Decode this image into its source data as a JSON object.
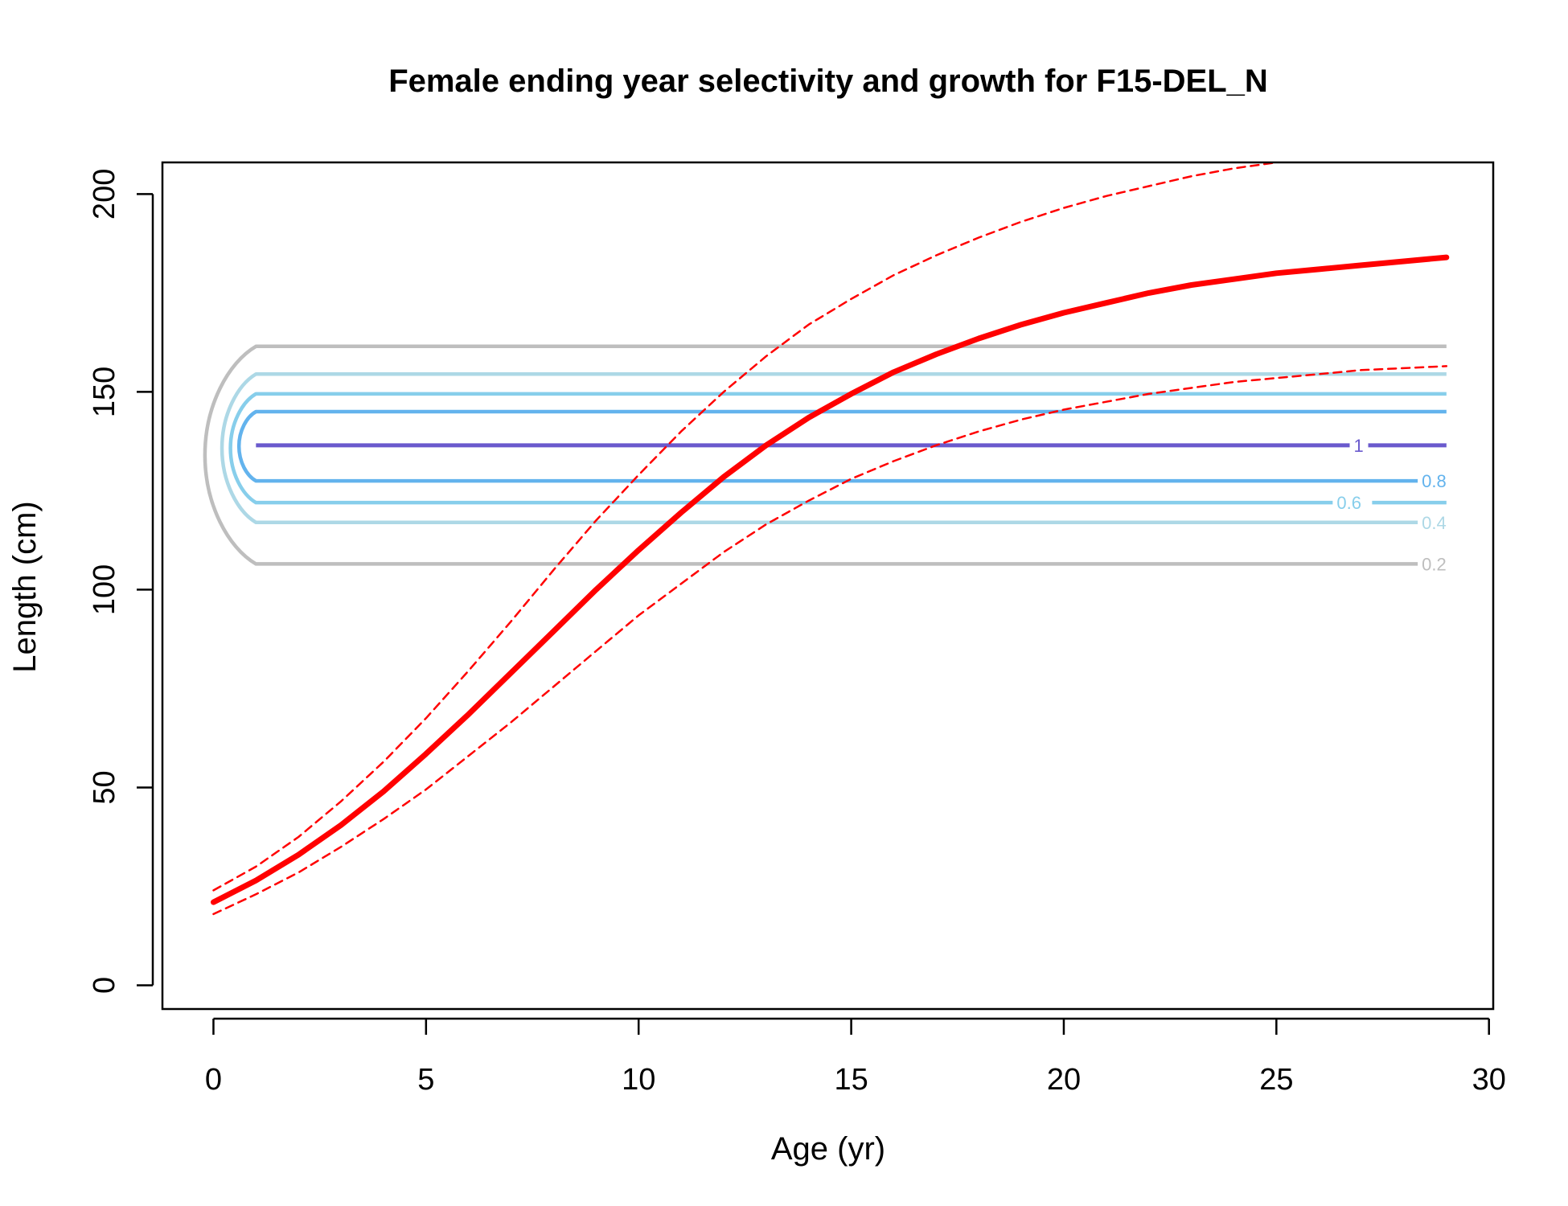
{
  "chart_data": {
    "type": "line",
    "title": "Female ending year selectivity and growth for F15-DEL_N",
    "xlabel": "Age (yr)",
    "ylabel": "Length (cm)",
    "xlim": [
      -1.2,
      30.1
    ],
    "ylim": [
      -6,
      208
    ],
    "x_ticks": [
      0,
      5,
      10,
      15,
      20,
      25,
      30
    ],
    "y_ticks": [
      0,
      50,
      100,
      150,
      200
    ],
    "grid": false,
    "legend": "none",
    "series": [
      {
        "role": "mean-growth",
        "color": "#ff0000",
        "style": "solid",
        "x": [
          0,
          1,
          2,
          3,
          4,
          5,
          6,
          7,
          8,
          9,
          10,
          11,
          12,
          13,
          14,
          15,
          16,
          17,
          18,
          19,
          20,
          21,
          22,
          23,
          24,
          25,
          26,
          27,
          28,
          29
        ],
        "y": [
          21,
          26.5,
          33,
          40.5,
          49,
          58.5,
          68.5,
          79,
          89.5,
          100,
          110,
          119.5,
          128.5,
          136.5,
          143.5,
          149.5,
          155,
          159.5,
          163.5,
          167,
          170,
          172.5,
          175,
          177,
          178.5,
          180,
          181,
          182,
          183,
          184
        ]
      },
      {
        "role": "upper-interval",
        "color": "#ff0000",
        "style": "dashed",
        "x": [
          0,
          1,
          2,
          3,
          4,
          5,
          6,
          7,
          8,
          9,
          10,
          11,
          12,
          13,
          14,
          15,
          16,
          17,
          18,
          19,
          20,
          21,
          22,
          23,
          24,
          25,
          26,
          27,
          28,
          29
        ],
        "y": [
          24,
          30,
          37.5,
          46.5,
          56.5,
          67.5,
          79.5,
          92,
          105,
          117.5,
          129,
          140,
          150,
          159,
          167,
          173.5,
          179.5,
          184.5,
          189,
          193,
          196.5,
          199.5,
          202,
          204.5,
          206.5,
          208,
          209.5,
          210.5,
          211.5,
          212
        ]
      },
      {
        "role": "lower-interval",
        "color": "#ff0000",
        "style": "dashed",
        "x": [
          0,
          1,
          2,
          3,
          4,
          5,
          6,
          7,
          8,
          9,
          10,
          11,
          12,
          13,
          14,
          15,
          16,
          17,
          18,
          19,
          20,
          21,
          22,
          23,
          24,
          25,
          26,
          27,
          28,
          29
        ],
        "y": [
          18,
          23,
          28.5,
          35,
          42,
          49.5,
          58,
          66.5,
          75.5,
          84.5,
          93.5,
          101.5,
          109.5,
          116.5,
          122.5,
          128,
          132.5,
          136.5,
          140,
          143,
          145.5,
          147.5,
          149.5,
          151,
          152.5,
          153.5,
          154.5,
          155.5,
          156,
          156.5
        ]
      }
    ],
    "contours": [
      {
        "level": "0.2",
        "color": "#bebebe",
        "upper": 161.5,
        "lower": 106.5,
        "x_left": -0.2,
        "x_right": 29,
        "label_x": 28.4,
        "label": "0.2",
        "label_on": "lower"
      },
      {
        "level": "0.4",
        "color": "#add8e6",
        "upper": 154.5,
        "lower": 117,
        "x_left": 0.2,
        "x_right": 29,
        "label_x": 28.4,
        "label": "0.4",
        "label_on": "lower"
      },
      {
        "level": "0.6",
        "color": "#87ceeb",
        "upper": 149.5,
        "lower": 122,
        "x_left": 0.4,
        "x_right": 29,
        "label_x": 26.4,
        "label": "0.6",
        "label_on": "lower"
      },
      {
        "level": "0.8",
        "color": "#63b3ed",
        "upper": 145,
        "lower": 127.5,
        "x_left": 0.6,
        "x_right": 29,
        "label_x": 28.4,
        "label": "0.8",
        "label_on": "lower"
      },
      {
        "level": "1",
        "color": "#6a5acd",
        "upper": 136.5,
        "lower": 136.5,
        "x_left": 1,
        "x_right": 29,
        "label_x": 26.8,
        "label": "1",
        "label_on": "line"
      }
    ]
  }
}
